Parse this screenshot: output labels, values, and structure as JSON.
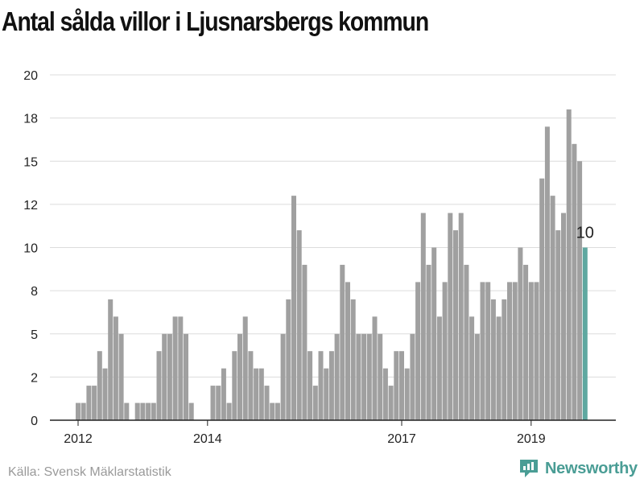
{
  "title": "Antal sålda villor i Ljusnarsbergs kommun",
  "source": "Källa: Svensk Mäklarstatistik",
  "brand": {
    "name": "Newsworthy",
    "icon": "newsworthy-logo-icon",
    "color": "#4a9d95"
  },
  "chart_data": {
    "type": "bar",
    "colors": {
      "bar": "#a0a0a0",
      "highlight": "#5fa8a0",
      "grid": "#dcdcdc",
      "axis": "#222222"
    },
    "grid": true,
    "ylim": [
      0,
      20
    ],
    "y_ticks": [
      {
        "value": 0,
        "label": "0"
      },
      {
        "value": 2.5,
        "label": "2"
      },
      {
        "value": 5,
        "label": "5"
      },
      {
        "value": 7.5,
        "label": "8"
      },
      {
        "value": 10,
        "label": "10"
      },
      {
        "value": 12.5,
        "label": "12"
      },
      {
        "value": 15,
        "label": "15"
      },
      {
        "value": 17.5,
        "label": "18"
      },
      {
        "value": 20,
        "label": "20"
      }
    ],
    "x_ticks": [
      {
        "index": 0,
        "label": "2012"
      },
      {
        "index": 24,
        "label": "2014"
      },
      {
        "index": 60,
        "label": "2017"
      },
      {
        "index": 84,
        "label": "2019"
      }
    ],
    "highlight_index": 94,
    "highlight_label": "10",
    "values": [
      1,
      1,
      2,
      2,
      4,
      3,
      7,
      6,
      5,
      1,
      0,
      1,
      1,
      1,
      1,
      4,
      5,
      5,
      6,
      6,
      5,
      1,
      0,
      0,
      0,
      2,
      2,
      3,
      1,
      4,
      5,
      6,
      4,
      3,
      3,
      2,
      1,
      1,
      5,
      7,
      13,
      11,
      9,
      4,
      2,
      4,
      3,
      4,
      5,
      9,
      8,
      7,
      5,
      5,
      5,
      6,
      5,
      3,
      2,
      4,
      4,
      3,
      5,
      8,
      12,
      9,
      10,
      6,
      8,
      12,
      11,
      12,
      9,
      6,
      5,
      8,
      8,
      7,
      6,
      7,
      8,
      8,
      10,
      9,
      8,
      8,
      14,
      17,
      13,
      11,
      12,
      18,
      16,
      15,
      10
    ]
  }
}
